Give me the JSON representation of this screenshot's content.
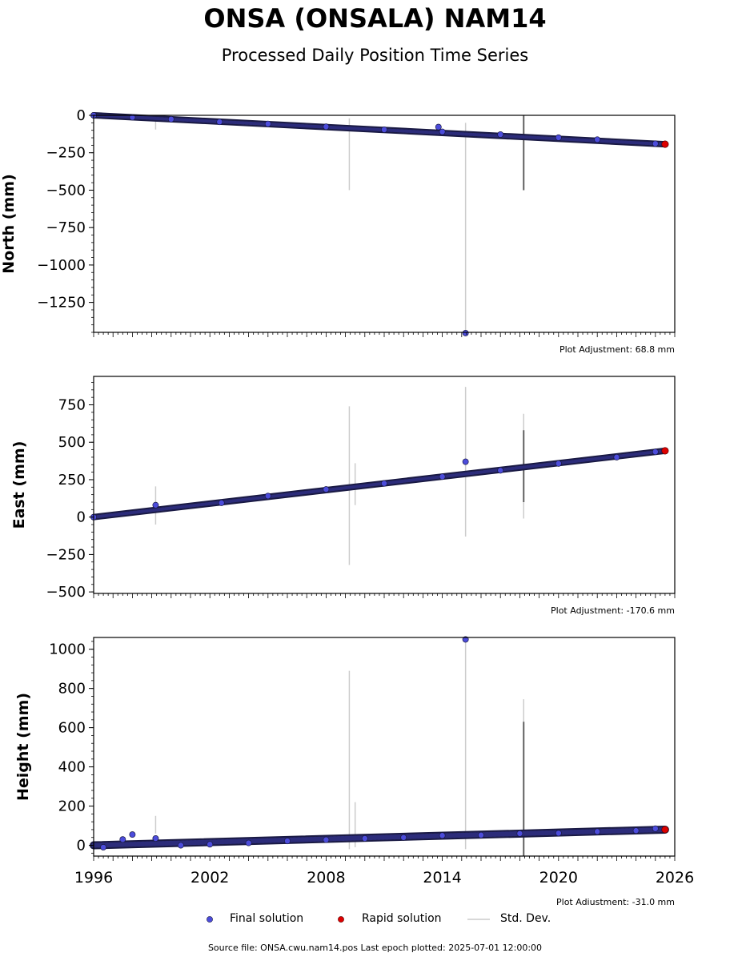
{
  "title": "ONSA (ONSALA) NAM14",
  "subtitle": "Processed Daily Position Time Series",
  "legend": {
    "final": "Final solution",
    "rapid": "Rapid solution",
    "stddev": "Std. Dev."
  },
  "colors": {
    "final": "#4c4cdb",
    "rapid": "#dd0000",
    "edge": "#1a1a44",
    "stddev": "#cccccc",
    "stddev_dark": "#606060"
  },
  "footer": "Source file: ONSA.cwu.nam14.pos  Last epoch plotted: 2025-07-01 12:00:00",
  "chart_data": [
    {
      "type": "scatter",
      "ylabel": "North (mm)",
      "adjustment": "Plot Adjustment: 68.8 mm",
      "xlim": [
        1996,
        2026
      ],
      "ylim": [
        -1450,
        0
      ],
      "yticks": [
        0,
        -250,
        -500,
        -750,
        -1000,
        -1250
      ],
      "ytick_labels": [
        "0",
        "−250",
        "−500",
        "−750",
        "−1000",
        "−1250"
      ],
      "trend": {
        "x": [
          1996.0,
          2025.5
        ],
        "y": [
          0,
          -193
        ]
      },
      "series": [
        {
          "name": "Final solution",
          "x": [
            1996.0,
            1998.0,
            2000.0,
            2002.5,
            2005.0,
            2008.0,
            2011.0,
            2013.8,
            2014.0,
            2015.2,
            2017.0,
            2020.0,
            2022.0,
            2025.0
          ],
          "y": [
            0,
            -13,
            -26,
            -44,
            -57,
            -76,
            -96,
            -78,
            -110,
            -1455,
            -128,
            -149,
            -162,
            -189
          ]
        },
        {
          "name": "Rapid solution",
          "x": [
            2025.5
          ],
          "y": [
            -193
          ]
        }
      ],
      "errorbars": [
        {
          "x": 1999.2,
          "y": [
            -95,
            0
          ],
          "dark": false
        },
        {
          "x": 2009.2,
          "y": [
            -500,
            -20
          ],
          "dark": false
        },
        {
          "x": 2015.2,
          "y": [
            -1455,
            -50
          ],
          "dark": false
        },
        {
          "x": 2018.2,
          "y": [
            -500,
            0
          ],
          "dark": true
        }
      ]
    },
    {
      "type": "scatter",
      "ylabel": "East (mm)",
      "adjustment": "Plot Adjustment: -170.6 mm",
      "xlim": [
        1996,
        2026
      ],
      "ylim": [
        -510,
        940
      ],
      "yticks": [
        750,
        500,
        250,
        0,
        -250,
        -500
      ],
      "ytick_labels": [
        "750",
        "500",
        "250",
        "0",
        "−250",
        "−500"
      ],
      "trend": {
        "x": [
          1996.0,
          2025.5
        ],
        "y": [
          0,
          443
        ]
      },
      "series": [
        {
          "name": "Final solution",
          "x": [
            1996.0,
            1999.2,
            2002.6,
            2005.0,
            2008.0,
            2011.0,
            2014.0,
            2015.2,
            2017.0,
            2020.0,
            2023.0,
            2025.0
          ],
          "y": [
            0,
            80,
            95,
            141,
            185,
            225,
            270,
            370,
            312,
            358,
            400,
            436
          ]
        },
        {
          "name": "Rapid solution",
          "x": [
            2025.5
          ],
          "y": [
            443
          ]
        }
      ],
      "errorbars": [
        {
          "x": 1999.2,
          "y": [
            -50,
            205
          ],
          "dark": false
        },
        {
          "x": 2009.2,
          "y": [
            -320,
            740
          ],
          "dark": false
        },
        {
          "x": 2009.5,
          "y": [
            80,
            360
          ],
          "dark": false
        },
        {
          "x": 2015.2,
          "y": [
            -130,
            870
          ],
          "dark": false
        },
        {
          "x": 2018.2,
          "y": [
            -10,
            690
          ],
          "dark": false
        },
        {
          "x": 2018.2,
          "y": [
            100,
            580
          ],
          "dark": true
        }
      ]
    },
    {
      "type": "scatter",
      "ylabel": "Height (mm)",
      "adjustment": "Plot Adjustment: -31.0 mm",
      "xlim": [
        1996,
        2026
      ],
      "ylim": [
        -55,
        1060
      ],
      "yticks": [
        1000,
        800,
        600,
        400,
        200,
        0
      ],
      "ytick_labels": [
        "1000",
        "800",
        "600",
        "400",
        "200",
        "0"
      ],
      "xticks": [
        1996,
        2002,
        2008,
        2014,
        2020,
        2026
      ],
      "xtick_labels": [
        "1996",
        "2002",
        "2008",
        "2014",
        "2020",
        "2026"
      ],
      "trend": {
        "x": [
          1996.0,
          2025.5
        ],
        "y": [
          0,
          80
        ]
      },
      "series": [
        {
          "name": "Final solution",
          "x": [
            1996.5,
            1997.5,
            1998.0,
            1999.2,
            2000.5,
            2002.0,
            2004.0,
            2006.0,
            2008.0,
            2010.0,
            2012.0,
            2014.0,
            2015.2,
            2016.0,
            2018.0,
            2020.0,
            2022.0,
            2024.0,
            2025.0
          ],
          "y": [
            -10,
            30,
            55,
            35,
            0,
            5,
            12,
            22,
            28,
            35,
            40,
            50,
            1050,
            52,
            60,
            62,
            70,
            75,
            85
          ]
        },
        {
          "name": "Rapid solution",
          "x": [
            2025.5
          ],
          "y": [
            80
          ]
        }
      ],
      "errorbars": [
        {
          "x": 1999.2,
          "y": [
            60,
            150
          ],
          "dark": false
        },
        {
          "x": 2009.2,
          "y": [
            -20,
            890
          ],
          "dark": false
        },
        {
          "x": 2009.5,
          "y": [
            -10,
            220
          ],
          "dark": false
        },
        {
          "x": 2015.2,
          "y": [
            -20,
            1050
          ],
          "dark": false
        },
        {
          "x": 2018.2,
          "y": [
            -55,
            745
          ],
          "dark": false
        },
        {
          "x": 2018.2,
          "y": [
            -55,
            630
          ],
          "dark": true
        }
      ]
    }
  ]
}
